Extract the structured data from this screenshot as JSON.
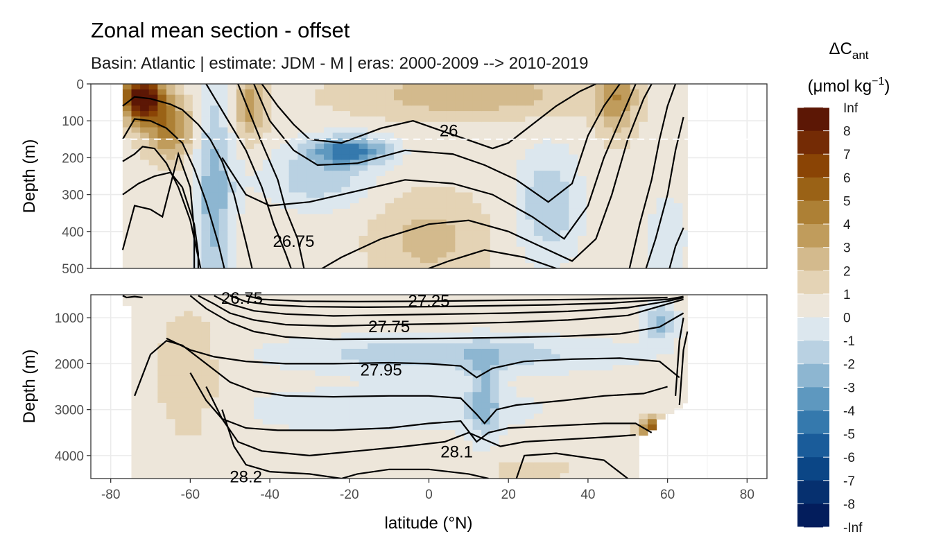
{
  "chart_data": {
    "type": "heatmap",
    "title": "Zonal mean section - offset",
    "subtitle": "Basin: Atlantic | estimate: JDM - M | eras: 2000-2009 --> 2010-2019",
    "xlabel": "latitude (°N)",
    "ylabel": "Depth (m)",
    "xlim": [
      -85,
      85
    ],
    "x_ticks": [
      -80,
      -60,
      -40,
      -20,
      0,
      20,
      40,
      60,
      80
    ],
    "x_tick_labels": [
      "-80",
      "-60",
      "-40",
      "-20",
      "0",
      "20",
      "40",
      "60",
      "80"
    ],
    "panels": [
      {
        "name": "upper",
        "ylim": [
          0,
          500
        ],
        "y_ticks": [
          0,
          100,
          200,
          300,
          400,
          500
        ],
        "y_tick_labels": [
          "0",
          "100",
          "200",
          "300",
          "400",
          "500"
        ],
        "reference_line_depth": 150
      },
      {
        "name": "lower",
        "ylim": [
          500,
          4500
        ],
        "y_ticks": [
          1000,
          2000,
          3000,
          4000
        ],
        "y_tick_labels": [
          "1000",
          "2000",
          "3000",
          "4000"
        ]
      }
    ],
    "data_xrange": [
      -77,
      65
    ],
    "isopycnal_labels": [
      {
        "text": "26",
        "lat": 5,
        "depth": 125
      },
      {
        "text": "26.75",
        "lat": -34,
        "depth": 425
      },
      {
        "text": "26.75",
        "lat": -47,
        "depth": 500
      },
      {
        "text": "27.25",
        "lat": 0,
        "depth": 620
      },
      {
        "text": "27.75",
        "lat": -10,
        "depth": 1180
      },
      {
        "text": "27.95",
        "lat": -12,
        "depth": 2120
      },
      {
        "text": "28.1",
        "lat": 7,
        "depth": 3900
      },
      {
        "text": "28.2",
        "lat": -46,
        "depth": 4450
      }
    ],
    "legend": {
      "title": "ΔC",
      "title_subscript": "ant",
      "units": "(μmol kg",
      "units_superscript": "−1",
      "units_suffix": ")",
      "breaks": [
        "Inf",
        "8",
        "7",
        "6",
        "5",
        "4",
        "3",
        "2",
        "1",
        "0",
        "-1",
        "-2",
        "-3",
        "-4",
        "-5",
        "-6",
        "-7",
        "-8",
        "-Inf"
      ],
      "colors": [
        "#5c1705",
        "#742b05",
        "#8a4405",
        "#9a6216",
        "#ad8035",
        "#c09c5c",
        "#d3ba8d",
        "#e4d3b5",
        "#ede6da",
        "#dce7ee",
        "#b9d1e2",
        "#8db6d1",
        "#5e98bf",
        "#3579ad",
        "#1a5c9a",
        "#0b4686",
        "#06306f",
        "#031d5c"
      ]
    }
  }
}
